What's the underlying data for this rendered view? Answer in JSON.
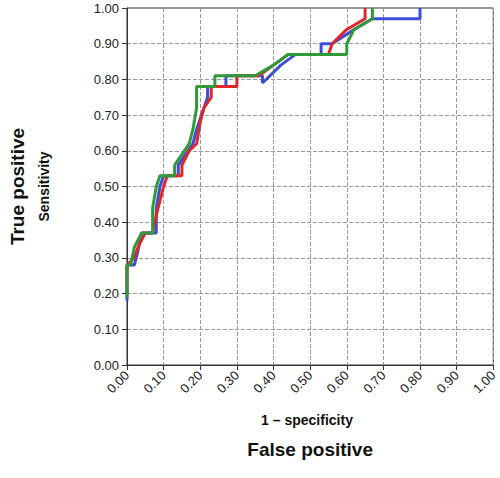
{
  "chart_data": {
    "type": "line",
    "x_label": "False positive",
    "x_sublabel": "1 – specificity",
    "y_label": "True positive",
    "y_sublabel": "Sensitivity",
    "xlim": [
      0,
      1
    ],
    "ylim": [
      0,
      1
    ],
    "xticks": [
      {
        "value": 0,
        "label": "0.00"
      },
      {
        "value": 0.1,
        "label": "0.10"
      },
      {
        "value": 0.2,
        "label": "0.20"
      },
      {
        "value": 0.3,
        "label": "0.30"
      },
      {
        "value": 0.4,
        "label": "0.40"
      },
      {
        "value": 0.5,
        "label": "0.50"
      },
      {
        "value": 0.6,
        "label": "0.60"
      },
      {
        "value": 0.7,
        "label": "0.70"
      },
      {
        "value": 0.8,
        "label": "0.80"
      },
      {
        "value": 0.9,
        "label": "0.90"
      },
      {
        "value": 1,
        "label": "1.00"
      }
    ],
    "yticks": [
      {
        "value": 0,
        "label": "0.00"
      },
      {
        "value": 0.1,
        "label": "0.10"
      },
      {
        "value": 0.2,
        "label": "0.20"
      },
      {
        "value": 0.3,
        "label": "0.30"
      },
      {
        "value": 0.4,
        "label": "0.40"
      },
      {
        "value": 0.5,
        "label": "0.50"
      },
      {
        "value": 0.6,
        "label": "0.60"
      },
      {
        "value": 0.7,
        "label": "0.70"
      },
      {
        "value": 0.8,
        "label": "0.80"
      },
      {
        "value": 0.9,
        "label": "0.90"
      },
      {
        "value": 1,
        "label": "1.00"
      }
    ],
    "grid": true,
    "series": [
      {
        "color": "#3b4fd6",
        "x": [
          0,
          0,
          0.02,
          0.03,
          0.04,
          0.08,
          0.08,
          0.09,
          0.1,
          0.14,
          0.14,
          0.16,
          0.18,
          0.19,
          0.21,
          0.22,
          0.22,
          0.27,
          0.27,
          0.37,
          0.37,
          0.42,
          0.46,
          0.53,
          0.53,
          0.56,
          0.62,
          0.67,
          0.67,
          0.8,
          0.8
        ],
        "values": [
          0.18,
          0.28,
          0.28,
          0.32,
          0.37,
          0.37,
          0.44,
          0.5,
          0.53,
          0.53,
          0.56,
          0.59,
          0.62,
          0.66,
          0.72,
          0.75,
          0.78,
          0.78,
          0.81,
          0.81,
          0.79,
          0.84,
          0.87,
          0.87,
          0.9,
          0.9,
          0.94,
          0.97,
          0.97,
          0.97,
          1.0
        ]
      },
      {
        "color": "#e0262a",
        "x": [
          0,
          0,
          0.02,
          0.03,
          0.05,
          0.07,
          0.08,
          0.1,
          0.11,
          0.15,
          0.15,
          0.17,
          0.19,
          0.2,
          0.21,
          0.23,
          0.23,
          0.3,
          0.3,
          0.36,
          0.4,
          0.44,
          0.55,
          0.56,
          0.6,
          0.65,
          0.65
        ],
        "values": [
          0.2,
          0.28,
          0.3,
          0.33,
          0.37,
          0.37,
          0.42,
          0.5,
          0.53,
          0.53,
          0.56,
          0.6,
          0.62,
          0.68,
          0.72,
          0.75,
          0.78,
          0.78,
          0.81,
          0.81,
          0.84,
          0.87,
          0.87,
          0.9,
          0.94,
          0.97,
          1.0
        ]
      },
      {
        "color": "#2f9a3a",
        "x": [
          0,
          0,
          0.01,
          0.02,
          0.04,
          0.07,
          0.07,
          0.08,
          0.09,
          0.13,
          0.13,
          0.15,
          0.17,
          0.18,
          0.19,
          0.19,
          0.24,
          0.24,
          0.35,
          0.4,
          0.44,
          0.6,
          0.6,
          0.62,
          0.67,
          0.67
        ],
        "values": [
          0.19,
          0.28,
          0.28,
          0.33,
          0.37,
          0.37,
          0.44,
          0.5,
          0.53,
          0.53,
          0.56,
          0.59,
          0.62,
          0.66,
          0.72,
          0.78,
          0.78,
          0.81,
          0.81,
          0.84,
          0.87,
          0.87,
          0.9,
          0.94,
          0.97,
          1.0
        ]
      }
    ]
  }
}
